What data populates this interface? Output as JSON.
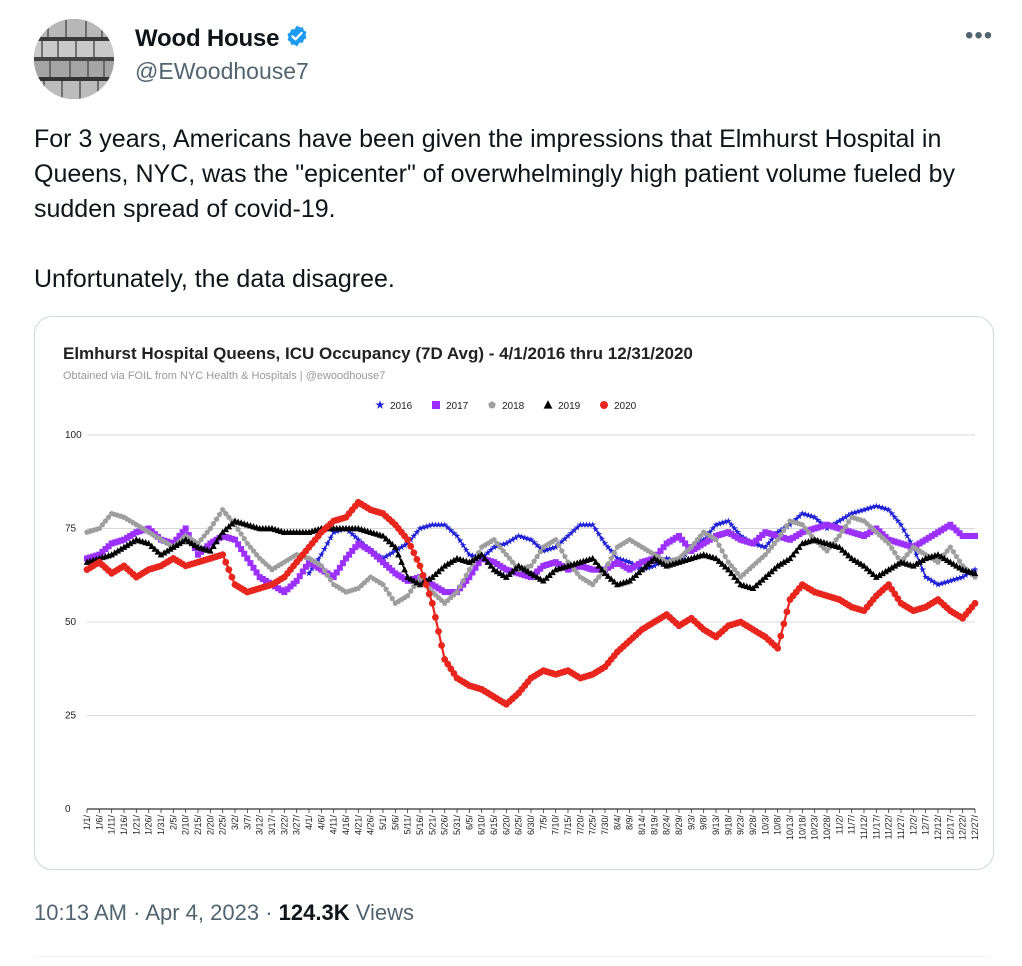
{
  "author": {
    "name": "Wood House",
    "handle": "@EWoodhouse7",
    "verified": true,
    "verified_color": "#1d9bf0"
  },
  "more_icon": "ellipsis-icon",
  "tweet": {
    "paragraph1": "For 3 years, Americans have been given the impressions that Elmhurst Hospital in Queens, NYC,  was the \"epicenter\" of overwhelmingly high patient volume fueled by sudden spread of covid-19.",
    "paragraph2": "Unfortunately, the data disagree."
  },
  "meta": {
    "time": "10:13 AM",
    "sep1": "·",
    "date": "Apr 4, 2023",
    "sep2": "·",
    "views_count": "124.3K",
    "views_label": "Views"
  },
  "chart_data": {
    "type": "line",
    "title": "Elmhurst Hospital Queens, ICU Occupancy (7D Avg) - 4/1/2016 thru 12/31/2020",
    "subtitle": "Obtained via FOIL from NYC Health & Hospitals | @ewoodhouse7",
    "ylim": [
      0,
      100
    ],
    "yticks": [
      0,
      25,
      50,
      75,
      100
    ],
    "grid": true,
    "legend_placement": "top-center",
    "categories": [
      "1/1/",
      "1/6/",
      "1/11/",
      "1/16/",
      "1/21/",
      "1/26/",
      "1/31/",
      "2/5/",
      "2/10/",
      "2/15/",
      "2/20/",
      "2/25/",
      "3/2/",
      "3/7/",
      "3/12/",
      "3/17/",
      "3/22/",
      "3/27/",
      "4/1/",
      "4/6/",
      "4/11/",
      "4/16/",
      "4/21/",
      "4/26/",
      "5/1/",
      "5/6/",
      "5/11/",
      "5/16/",
      "5/21/",
      "5/26/",
      "5/31/",
      "6/5/",
      "6/10/",
      "6/15/",
      "6/20/",
      "6/25/",
      "6/30/",
      "7/5/",
      "7/10/",
      "7/15/",
      "7/20/",
      "7/25/",
      "7/30/",
      "8/4/",
      "8/9/",
      "8/14/",
      "8/19/",
      "8/24/",
      "8/29/",
      "9/3/",
      "9/8/",
      "9/13/",
      "9/18/",
      "9/23/",
      "9/28/",
      "10/3/",
      "10/8/",
      "10/13/",
      "10/18/",
      "10/23/",
      "10/28/",
      "11/2/",
      "11/7/",
      "11/12/",
      "11/17/",
      "11/22/",
      "11/27/",
      "12/2/",
      "12/7/",
      "12/12/",
      "12/17/",
      "12/22/",
      "12/27/"
    ],
    "series": [
      {
        "name": "2016",
        "color": "#1f1fd6",
        "marker": "star",
        "start_index": 18,
        "values": [
          null,
          null,
          null,
          null,
          null,
          null,
          null,
          null,
          null,
          null,
          null,
          null,
          null,
          null,
          null,
          null,
          null,
          null,
          63,
          68,
          74,
          75,
          72,
          69,
          67,
          69,
          71,
          75,
          76,
          76,
          73,
          68,
          67,
          70,
          71,
          73,
          72,
          69,
          70,
          73,
          76,
          76,
          71,
          67,
          66,
          64,
          65,
          67,
          66,
          70,
          72,
          76,
          77,
          73,
          71,
          70,
          74,
          76,
          79,
          78,
          75,
          77,
          79,
          80,
          81,
          80,
          76,
          70,
          62,
          60,
          61,
          62,
          64
        ]
      },
      {
        "name": "2017",
        "color": "#9b30ff",
        "marker": "square",
        "values": [
          67,
          68,
          71,
          72,
          74,
          75,
          72,
          71,
          75,
          68,
          71,
          73,
          72,
          67,
          62,
          60,
          58,
          61,
          66,
          64,
          62,
          67,
          71,
          69,
          66,
          63,
          61,
          62,
          60,
          58,
          58,
          62,
          67,
          66,
          64,
          63,
          62,
          65,
          66,
          64,
          65,
          64,
          64,
          66,
          64,
          66,
          67,
          71,
          73,
          69,
          71,
          73,
          74,
          72,
          71,
          74,
          73,
          72,
          74,
          75,
          76,
          75,
          74,
          73,
          75,
          72,
          71,
          70,
          72,
          74,
          76,
          73,
          73
        ]
      },
      {
        "name": "2018",
        "color": "#9e9e9e",
        "marker": "pentagon",
        "values": [
          74,
          75,
          79,
          78,
          76,
          74,
          72,
          70,
          73,
          71,
          75,
          80,
          76,
          71,
          67,
          64,
          66,
          68,
          67,
          65,
          60,
          58,
          59,
          62,
          60,
          55,
          57,
          62,
          58,
          55,
          58,
          64,
          70,
          72,
          68,
          64,
          65,
          70,
          72,
          66,
          62,
          60,
          64,
          70,
          72,
          70,
          68,
          66,
          67,
          70,
          74,
          72,
          66,
          62,
          65,
          68,
          72,
          77,
          76,
          72,
          69,
          73,
          78,
          77,
          74,
          71,
          66,
          70,
          68,
          66,
          70,
          65,
          62
        ]
      },
      {
        "name": "2019",
        "color": "#000000",
        "marker": "triangle",
        "values": [
          66,
          67,
          68,
          70,
          72,
          71,
          68,
          70,
          72,
          70,
          69,
          74,
          77,
          76,
          75,
          75,
          74,
          74,
          74,
          75,
          75,
          75,
          75,
          74,
          73,
          70,
          62,
          60,
          62,
          65,
          67,
          66,
          68,
          64,
          62,
          65,
          63,
          61,
          64,
          65,
          66,
          67,
          63,
          60,
          61,
          64,
          67,
          65,
          66,
          67,
          68,
          67,
          64,
          60,
          59,
          62,
          65,
          67,
          71,
          72,
          71,
          70,
          67,
          65,
          62,
          64,
          66,
          65,
          67,
          68,
          66,
          64,
          63
        ]
      },
      {
        "name": "2020",
        "color": "#e8261e",
        "marker": "circle",
        "values": [
          64,
          66,
          63,
          65,
          62,
          64,
          65,
          67,
          65,
          66,
          67,
          68,
          60,
          58,
          59,
          60,
          62,
          66,
          70,
          74,
          77,
          78,
          82,
          80,
          79,
          76,
          72,
          65,
          55,
          40,
          35,
          33,
          32,
          30,
          28,
          31,
          35,
          37,
          36,
          37,
          35,
          36,
          38,
          42,
          45,
          48,
          50,
          52,
          49,
          51,
          48,
          46,
          49,
          50,
          48,
          46,
          43,
          56,
          60,
          58,
          57,
          56,
          54,
          53,
          57,
          60,
          55,
          53,
          54,
          56,
          53,
          51,
          55
        ]
      }
    ]
  }
}
